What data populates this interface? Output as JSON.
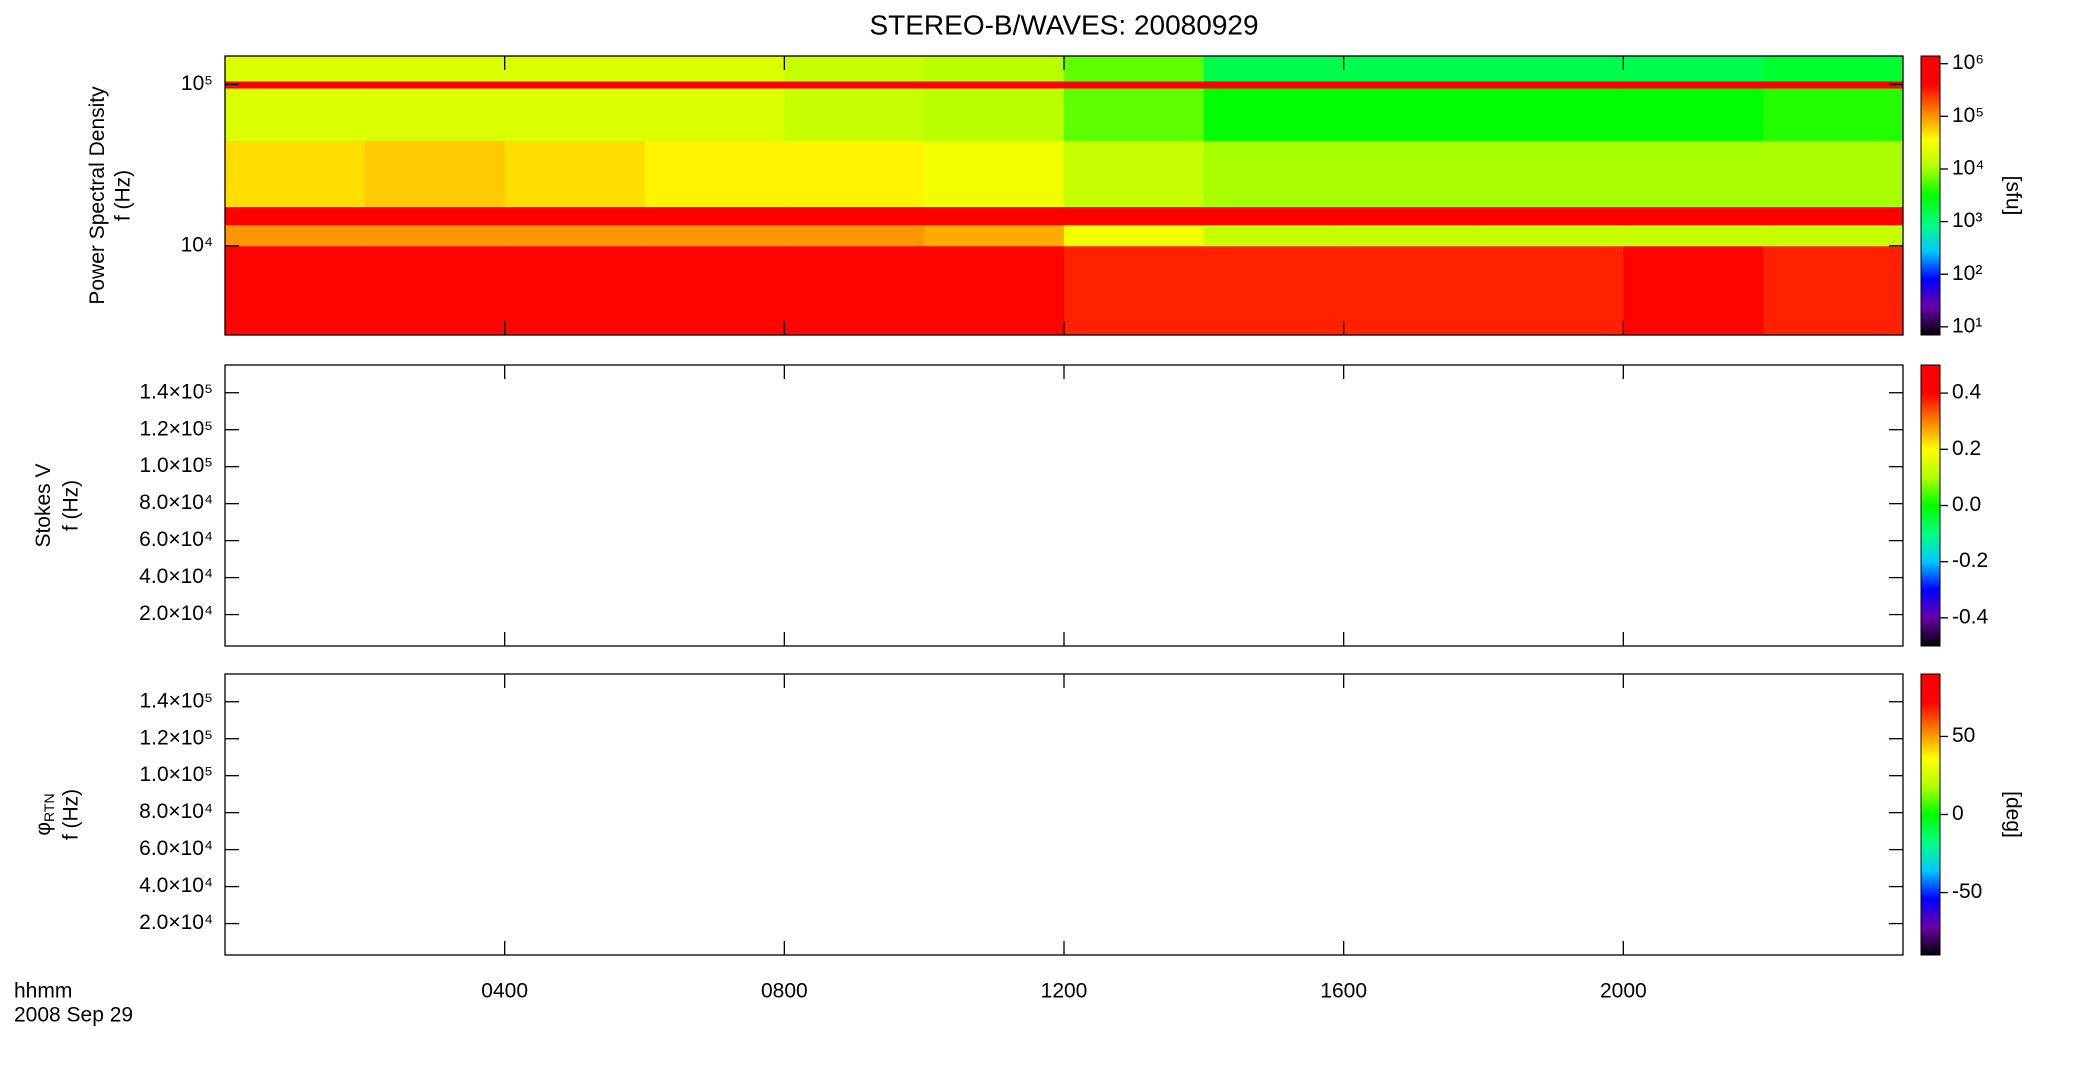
{
  "chart_data": {
    "title": "STEREO-B/WAVES: 20080929",
    "xlim": [
      0,
      24
    ],
    "xticks": [
      {
        "value": 4,
        "label": "0400"
      },
      {
        "value": 8,
        "label": "0800"
      },
      {
        "value": 12,
        "label": "1200"
      },
      {
        "value": 16,
        "label": "1600"
      },
      {
        "value": 20,
        "label": "2000"
      }
    ],
    "xlabel": "hhmm",
    "date": "2008 Sep 29",
    "colormap": [
      "#000000",
      "#6a00a8",
      "#0000ff",
      "#00c8ff",
      "#00ff80",
      "#00ff00",
      "#b0ff00",
      "#ffff00",
      "#ff8000",
      "#ff0000",
      "#ff0000"
    ],
    "panels": [
      {
        "type": "heatmap",
        "ylabel": "Power Spectral Density",
        "flabel": "f (Hz)",
        "yscale": "log",
        "ylim": [
          2800,
          150000
        ],
        "yticks": [
          {
            "value": 10000,
            "label": "10⁴"
          },
          {
            "value": 100000,
            "label": "10⁵"
          }
        ],
        "colorbar": {
          "scale": "log",
          "lim": [
            7,
            1400000
          ],
          "ticks": [
            {
              "value": 10,
              "label": "10¹"
            },
            {
              "value": 100,
              "label": "10²"
            },
            {
              "value": 1000,
              "label": "10³"
            },
            {
              "value": 10000,
              "label": "10⁴"
            },
            {
              "value": 100000,
              "label": "10⁵"
            },
            {
              "value": 1000000,
              "label": "10⁶"
            }
          ],
          "label": "[sfu]"
        },
        "time_edges": [
          0,
          2,
          4,
          6,
          8,
          10,
          12,
          14,
          16,
          18,
          20,
          22,
          24
        ],
        "freq_edges": [
          2800,
          10000,
          13500,
          17500,
          45000,
          95000,
          105000,
          150000
        ],
        "values": [
          [
            400000,
            400000,
            400000,
            400000,
            400000,
            400000,
            300000,
            300000,
            300000,
            300000,
            400000,
            300000
          ],
          [
            100000,
            100000,
            100000,
            100000,
            100000,
            80000,
            30000,
            15000,
            15000,
            15000,
            15000,
            15000
          ],
          [
            800000,
            800000,
            800000,
            800000,
            800000,
            800000,
            800000,
            800000,
            800000,
            800000,
            800000,
            800000
          ],
          [
            50000,
            60000,
            50000,
            40000,
            40000,
            30000,
            15000,
            10000,
            10000,
            10000,
            10000,
            10000
          ],
          [
            20000,
            20000,
            20000,
            20000,
            15000,
            12000,
            6000,
            3000,
            3000,
            3000,
            3000,
            4000
          ],
          [
            800000,
            800000,
            800000,
            800000,
            800000,
            800000,
            800000,
            800000,
            800000,
            800000,
            800000,
            800000
          ],
          [
            20000,
            20000,
            20000,
            20000,
            15000,
            12000,
            6000,
            1500,
            1500,
            1500,
            1500,
            2000
          ]
        ]
      },
      {
        "type": "heatmap",
        "ylabel": "Stokes V",
        "flabel": "f (Hz)",
        "yscale": "linear",
        "ylim": [
          3000,
          155000
        ],
        "yticks": [
          {
            "value": 20000,
            "label": "2.0×10⁴"
          },
          {
            "value": 40000,
            "label": "4.0×10⁴"
          },
          {
            "value": 60000,
            "label": "6.0×10⁴"
          },
          {
            "value": 80000,
            "label": "8.0×10⁴"
          },
          {
            "value": 100000,
            "label": "1.0×10⁵"
          },
          {
            "value": 120000,
            "label": "1.2×10⁵"
          },
          {
            "value": 140000,
            "label": "1.4×10⁵"
          }
        ],
        "colorbar": {
          "scale": "linear",
          "lim": [
            -0.5,
            0.5
          ],
          "ticks": [
            -0.4,
            -0.2,
            {
              "value": 0,
              "label": "0.0"
            },
            0.2,
            0.4
          ]
        }
      },
      {
        "type": "heatmap",
        "ylabel": "φ",
        "ylabel_sub": "RTN",
        "flabel": "f (Hz)",
        "yscale": "linear",
        "ylim": [
          3000,
          155000
        ],
        "yticks": [
          {
            "value": 20000,
            "label": "2.0×10⁴"
          },
          {
            "value": 40000,
            "label": "4.0×10⁴"
          },
          {
            "value": 60000,
            "label": "6.0×10⁴"
          },
          {
            "value": 80000,
            "label": "8.0×10⁴"
          },
          {
            "value": 100000,
            "label": "1.0×10⁵"
          },
          {
            "value": 120000,
            "label": "1.2×10⁵"
          },
          {
            "value": 140000,
            "label": "1.4×10⁵"
          }
        ],
        "colorbar": {
          "scale": "linear",
          "lim": [
            -90,
            90
          ],
          "ticks": [
            -50,
            0,
            50
          ],
          "label": "[deg]"
        }
      }
    ]
  }
}
